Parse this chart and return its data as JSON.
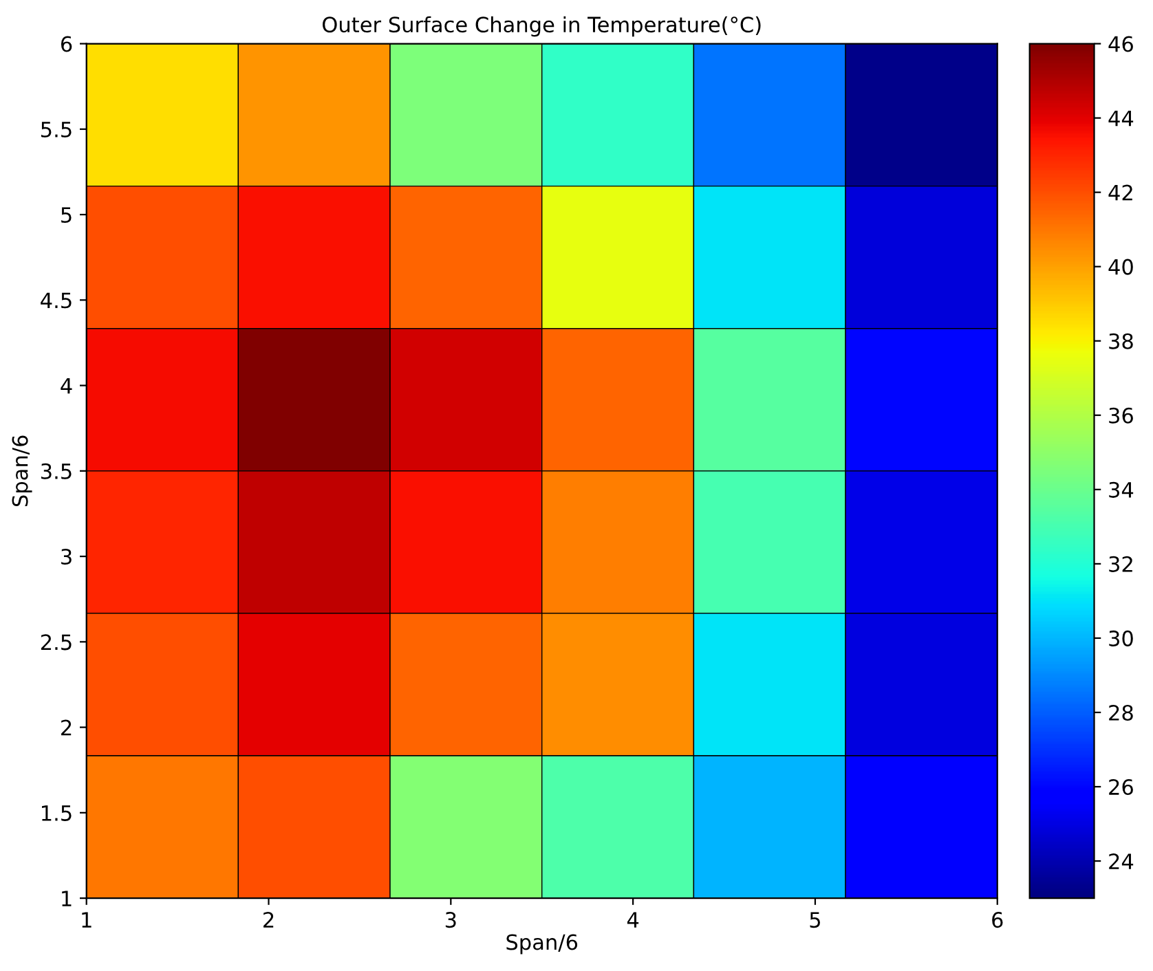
{
  "chart_data": {
    "type": "heatmap",
    "title": "Outer Surface Change in Temperature(°C)",
    "xlabel": "Span/6",
    "ylabel": "Span/6",
    "cells": [
      [
        38.5,
        40.3,
        34.5,
        32.4,
        28.5,
        23.2
      ],
      [
        42,
        43.5,
        41.5,
        37.5,
        31,
        24.8
      ],
      [
        43.6,
        46,
        44.3,
        41.5,
        33.5,
        26
      ],
      [
        43,
        44.7,
        43.5,
        40.8,
        33,
        25.1
      ],
      [
        42,
        44,
        41.5,
        40.5,
        31,
        24.9
      ],
      [
        41,
        42,
        34.7,
        33.2,
        30,
        25.8
      ]
    ],
    "xlim": [
      1,
      6
    ],
    "ylim": [
      1,
      6
    ],
    "xticks": [
      1,
      2,
      3,
      4,
      5,
      6
    ],
    "yticks": [
      1,
      1.5,
      2,
      2.5,
      3,
      3.5,
      4,
      4.5,
      5,
      5.5,
      6
    ],
    "clim": [
      23,
      46
    ],
    "cticks": [
      24,
      26,
      28,
      30,
      32,
      34,
      36,
      38,
      40,
      42,
      44,
      46
    ]
  }
}
